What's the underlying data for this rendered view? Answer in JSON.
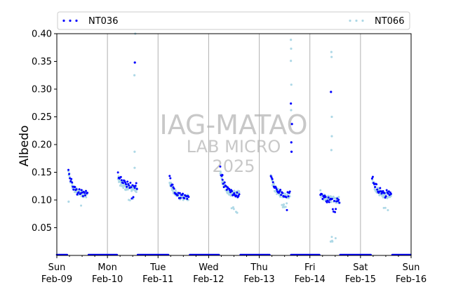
{
  "chart_data": {
    "type": "scatter",
    "ylabel": "Albedo",
    "xlabel": "",
    "ylim": [
      0,
      0.4
    ],
    "yticks": [
      0.05,
      0.1,
      0.15,
      0.2,
      0.25,
      0.3,
      0.35,
      0.4
    ],
    "xlim": [
      "2025-02-09",
      "2025-02-16"
    ],
    "xticks": [
      {
        "day": "Sun",
        "date": "Feb-09"
      },
      {
        "day": "Mon",
        "date": "Feb-10"
      },
      {
        "day": "Tue",
        "date": "Feb-11"
      },
      {
        "day": "Wed",
        "date": "Feb-12"
      },
      {
        "day": "Thu",
        "date": "Feb-13"
      },
      {
        "day": "Fri",
        "date": "Feb-14"
      },
      {
        "day": "Sat",
        "date": "Feb-15"
      },
      {
        "day": "Sun",
        "date": "Feb-16"
      }
    ],
    "grid": "vertical-at-day-boundaries",
    "legend_placement": "top (above plot, two columns)",
    "watermark": [
      "IAG-MATAO",
      "LAB MICRO",
      "2025"
    ],
    "series": [
      {
        "name": "NT036",
        "color": "#0000ff",
        "marker": "dot",
        "daily_profile": [
          {
            "day": "2025-02-09",
            "start_hour": 5.5,
            "end_hour": 14.5,
            "start_value": 0.155,
            "end_value": 0.11,
            "min_value": 0.104,
            "spikes": []
          },
          {
            "day": "2025-02-10",
            "start_hour": 5.0,
            "end_hour": 14.0,
            "start_value": 0.147,
            "end_value": 0.125,
            "min_value": 0.1,
            "spikes": [
              {
                "hour": 13.0,
                "value": 0.348
              }
            ]
          },
          {
            "day": "2025-02-11",
            "start_hour": 5.5,
            "end_hour": 14.5,
            "start_value": 0.141,
            "end_value": 0.104,
            "min_value": 0.102,
            "spikes": []
          },
          {
            "day": "2025-02-12",
            "start_hour": 5.5,
            "end_hour": 14.5,
            "start_value": 0.155,
            "end_value": 0.11,
            "min_value": 0.104,
            "spikes": [
              {
                "hour": 6.5,
                "value": 0.145
              }
            ]
          },
          {
            "day": "2025-02-13",
            "start_hour": 5.5,
            "end_hour": 14.5,
            "start_value": 0.146,
            "end_value": 0.11,
            "min_value": 0.076,
            "spikes": [
              {
                "hour": 15.0,
                "value": 0.274
              },
              {
                "hour": 15.5,
                "value": 0.237
              },
              {
                "hour": 15.2,
                "value": 0.204
              },
              {
                "hour": 15.3,
                "value": 0.187
              }
            ]
          },
          {
            "day": "2025-02-14",
            "start_hour": 5.0,
            "end_hour": 14.0,
            "start_value": 0.114,
            "end_value": 0.098,
            "min_value": 0.078,
            "spikes": [
              {
                "hour": 10.0,
                "value": 0.295
              }
            ]
          },
          {
            "day": "2025-02-15",
            "start_hour": 5.5,
            "end_hour": 14.5,
            "start_value": 0.144,
            "end_value": 0.112,
            "min_value": 0.1,
            "spikes": []
          }
        ],
        "night_value": 0.0
      },
      {
        "name": "NT066",
        "color": "#add8e6",
        "marker": "dot",
        "daily_profile": [
          {
            "day": "2025-02-09",
            "start_hour": 5.5,
            "end_hour": 14.5,
            "start_value": 0.15,
            "end_value": 0.11,
            "min_value": 0.084,
            "spikes": [
              {
                "hour": 5.6,
                "value": 0.097
              }
            ]
          },
          {
            "day": "2025-02-10",
            "start_hour": 5.0,
            "end_hour": 14.0,
            "start_value": 0.14,
            "end_value": 0.12,
            "min_value": 0.097,
            "spikes": [
              {
                "hour": 12.8,
                "value": 0.325
              },
              {
                "hour": 13.2,
                "value": 0.4
              },
              {
                "hour": 12.9,
                "value": 0.187
              },
              {
                "hour": 12.9,
                "value": 0.158
              }
            ]
          },
          {
            "day": "2025-02-11",
            "start_hour": 5.5,
            "end_hour": 14.5,
            "start_value": 0.136,
            "end_value": 0.104,
            "min_value": 0.1,
            "spikes": []
          },
          {
            "day": "2025-02-12",
            "start_hour": 5.5,
            "end_hour": 14.5,
            "start_value": 0.15,
            "end_value": 0.11,
            "min_value": 0.077,
            "spikes": [
              {
                "hour": 13.5,
                "value": 0.077
              }
            ]
          },
          {
            "day": "2025-02-13",
            "start_hour": 5.5,
            "end_hour": 14.5,
            "start_value": 0.142,
            "end_value": 0.108,
            "min_value": 0.085,
            "spikes": [
              {
                "hour": 15.0,
                "value": 0.389
              },
              {
                "hour": 15.1,
                "value": 0.373
              },
              {
                "hour": 15.0,
                "value": 0.351
              },
              {
                "hour": 15.2,
                "value": 0.308
              },
              {
                "hour": 15.1,
                "value": 0.262
              }
            ]
          },
          {
            "day": "2025-02-14",
            "start_hour": 5.0,
            "end_hour": 14.0,
            "start_value": 0.112,
            "end_value": 0.1,
            "min_value": 0.025,
            "spikes": [
              {
                "hour": 10.2,
                "value": 0.367
              },
              {
                "hour": 10.3,
                "value": 0.358
              },
              {
                "hour": 10.4,
                "value": 0.25
              },
              {
                "hour": 10.4,
                "value": 0.215
              },
              {
                "hour": 10.2,
                "value": 0.19
              },
              {
                "hour": 9.9,
                "value": 0.025
              }
            ]
          },
          {
            "day": "2025-02-15",
            "start_hour": 5.5,
            "end_hour": 14.5,
            "start_value": 0.14,
            "end_value": 0.108,
            "min_value": 0.08,
            "spikes": []
          }
        ],
        "night_value": 0.0
      }
    ]
  }
}
